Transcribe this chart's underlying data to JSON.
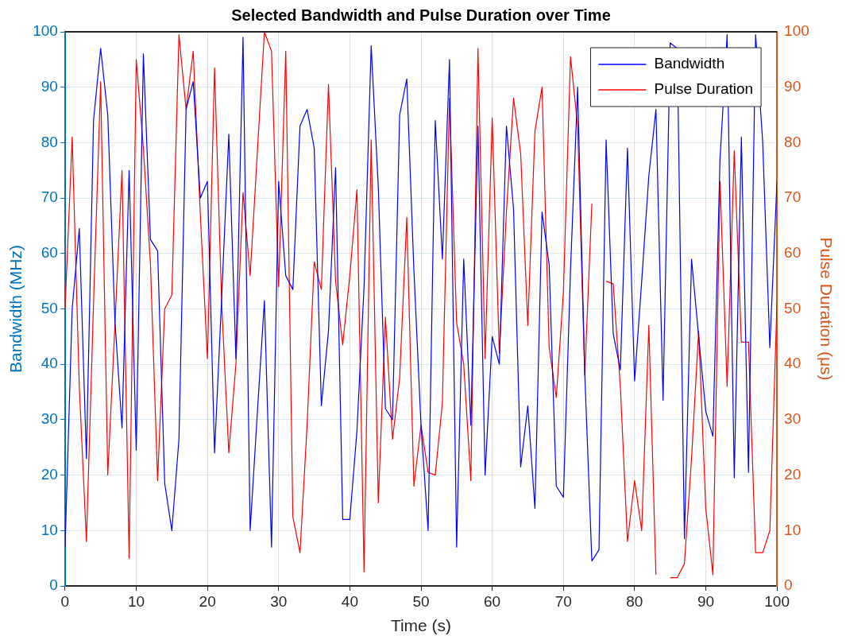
{
  "chart_data": {
    "type": "line",
    "title": "Selected Bandwidth and Pulse Duration over Time",
    "xlabel": "Time (s)",
    "ylabel": "Bandwidth (MHz)",
    "y2label": "Pulse Duration (μs)",
    "x": [
      0,
      1,
      2,
      3,
      4,
      5,
      6,
      7,
      8,
      9,
      10,
      11,
      12,
      13,
      14,
      15,
      16,
      17,
      18,
      19,
      20,
      21,
      22,
      23,
      24,
      25,
      26,
      27,
      28,
      29,
      30,
      31,
      32,
      33,
      34,
      35,
      36,
      37,
      38,
      39,
      40,
      41,
      42,
      43,
      44,
      45,
      46,
      47,
      48,
      49,
      50,
      51,
      52,
      53,
      54,
      55,
      56,
      57,
      58,
      59,
      60,
      61,
      62,
      63,
      64,
      65,
      66,
      67,
      68,
      69,
      70,
      71,
      72,
      73,
      74,
      75,
      76,
      77,
      78,
      79,
      80,
      81,
      82,
      83,
      84,
      85,
      86,
      87,
      88,
      89,
      90,
      91,
      92,
      93,
      94,
      95,
      96,
      97,
      98,
      99,
      100
    ],
    "series": [
      {
        "name": "Bandwidth",
        "color": "#0000ff",
        "values": [
          7,
          50,
          64.5,
          23,
          84,
          97,
          85,
          48,
          28.5,
          75,
          24.5,
          96,
          62.5,
          60.5,
          18.5,
          10,
          26.5,
          86,
          91,
          70,
          73,
          24,
          52,
          81.5,
          41,
          99,
          10,
          31,
          51.5,
          7,
          73,
          56,
          53.5,
          83,
          86,
          79,
          32.5,
          46,
          75.5,
          12,
          12,
          28,
          54,
          97.5,
          72,
          32,
          30,
          85,
          91.5,
          57,
          29,
          10,
          84,
          59,
          95,
          7,
          59,
          29,
          83,
          20,
          45,
          40,
          83,
          68,
          21.5,
          32.5,
          14,
          67.5,
          58,
          18,
          16,
          57,
          90,
          38.5,
          4.5,
          6.5,
          80.5,
          45.5,
          39,
          79,
          37,
          55,
          74,
          86,
          33.5,
          98,
          97,
          8.5,
          59,
          45,
          31.5,
          27,
          77,
          99.5,
          19.5,
          81,
          20.5,
          99.5,
          80,
          43,
          73
        ]
      },
      {
        "name": "Pulse Duration",
        "color": "#ff0000",
        "axis": "y2",
        "values": [
          50,
          81,
          36,
          8,
          51,
          91,
          20,
          47,
          75,
          5,
          95,
          79,
          58,
          19,
          50,
          52.5,
          99.5,
          86,
          96.5,
          67,
          41,
          93.5,
          51,
          24,
          40,
          71,
          56,
          78,
          100,
          96.5,
          54,
          96.5,
          12.5,
          6,
          29,
          58.5,
          53.5,
          90.5,
          55,
          43.5,
          56,
          71.5,
          2.5,
          80.5,
          15,
          48.5,
          26.5,
          37.5,
          66.5,
          18,
          29,
          20.5,
          20,
          33,
          88,
          47.5,
          40,
          19,
          97,
          41,
          84.5,
          42,
          67.5,
          88,
          78,
          47,
          82,
          90,
          43,
          34,
          53,
          95.5,
          83,
          38,
          69,
          null,
          55,
          54.5,
          36,
          8,
          19,
          10,
          47,
          2,
          null,
          1.5,
          1.5,
          4,
          23,
          46,
          14,
          2,
          73,
          36,
          78.5,
          44,
          44,
          6,
          6,
          10,
          51
        ]
      }
    ],
    "xlim": [
      0,
      100
    ],
    "xticks": [
      0,
      10,
      20,
      30,
      40,
      50,
      60,
      70,
      80,
      90,
      100
    ],
    "ylim": [
      0,
      100
    ],
    "yticks": [
      0,
      10,
      20,
      30,
      40,
      50,
      60,
      70,
      80,
      90,
      100
    ],
    "y2lim": [
      0,
      100
    ],
    "y2ticks": [
      0,
      10,
      20,
      30,
      40,
      50,
      60,
      70,
      80,
      90,
      100
    ],
    "grid": true,
    "legend": "top right",
    "marker": "none",
    "line_style": "solid"
  }
}
